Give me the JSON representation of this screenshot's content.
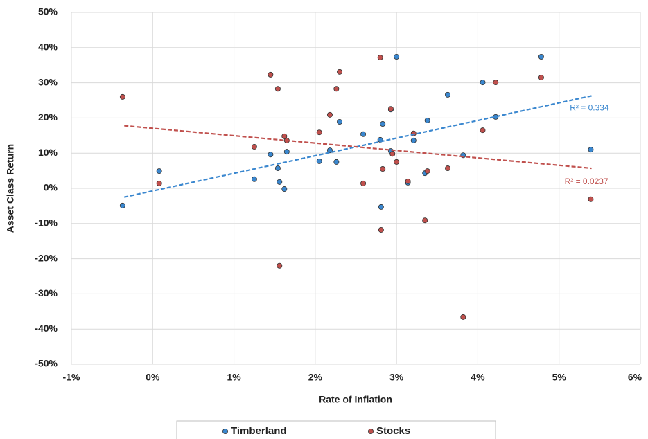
{
  "chart_data": {
    "type": "scatter",
    "x_label": "Rate of Inflation",
    "y_label": "Asset Class Return",
    "xlim": [
      -1,
      6
    ],
    "ylim": [
      -50,
      50
    ],
    "xticks": [
      {
        "value": -1,
        "label": "-1%"
      },
      {
        "value": 0,
        "label": "0%"
      },
      {
        "value": 1,
        "label": "1%"
      },
      {
        "value": 2,
        "label": "2%"
      },
      {
        "value": 3,
        "label": "3%"
      },
      {
        "value": 4,
        "label": "4%"
      },
      {
        "value": 5,
        "label": "5%"
      },
      {
        "value": 6,
        "label": "6%"
      }
    ],
    "yticks": [
      {
        "value": -50,
        "label": "-50%"
      },
      {
        "value": -40,
        "label": "-40%"
      },
      {
        "value": -30,
        "label": "-30%"
      },
      {
        "value": -20,
        "label": "-20%"
      },
      {
        "value": -10,
        "label": "-10%"
      },
      {
        "value": 0,
        "label": "0%"
      },
      {
        "value": 10,
        "label": "10%"
      },
      {
        "value": 20,
        "label": "20%"
      },
      {
        "value": 30,
        "label": "30%"
      },
      {
        "value": 40,
        "label": "40%"
      },
      {
        "value": 50,
        "label": "50%"
      }
    ],
    "grid": true,
    "legend": "bottom",
    "series": [
      {
        "name": "Timberland",
        "color": "#3a87cf",
        "x": [
          -0.37,
          0.08,
          1.25,
          1.45,
          1.54,
          1.56,
          1.62,
          1.65,
          2.05,
          2.18,
          2.26,
          2.3,
          2.59,
          2.8,
          2.83,
          2.81,
          2.93,
          2.93,
          3.0,
          3.14,
          3.21,
          3.35,
          3.38,
          3.63,
          3.82,
          4.06,
          4.22,
          4.78,
          5.39
        ],
        "values": [
          -4.9,
          4.9,
          2.6,
          9.6,
          5.7,
          1.8,
          -0.2,
          10.4,
          7.7,
          10.8,
          7.5,
          18.9,
          15.4,
          13.8,
          18.3,
          -5.3,
          10.6,
          22.4,
          37.4,
          1.6,
          13.6,
          4.3,
          19.3,
          26.6,
          9.4,
          30.1,
          20.3,
          37.4,
          11.0
        ],
        "trendline": {
          "x": [
            -0.35,
            5.4
          ],
          "values": [
            -2.5,
            26.3
          ],
          "label": "R² = 0.334"
        }
      },
      {
        "name": "Stocks",
        "color": "#c0504d",
        "x": [
          -0.37,
          0.08,
          1.25,
          1.45,
          1.54,
          1.56,
          1.62,
          1.65,
          2.05,
          2.18,
          2.26,
          2.3,
          2.59,
          2.8,
          2.81,
          2.83,
          2.93,
          2.95,
          3.0,
          3.14,
          3.21,
          3.35,
          3.38,
          3.63,
          3.82,
          4.06,
          4.22,
          4.78,
          5.39
        ],
        "values": [
          26.0,
          1.4,
          11.8,
          32.3,
          28.3,
          -22.0,
          14.8,
          13.6,
          15.9,
          20.9,
          28.3,
          33.1,
          1.4,
          37.2,
          -11.8,
          5.5,
          22.6,
          9.8,
          7.5,
          2.0,
          15.6,
          -9.1,
          4.9,
          5.7,
          -36.6,
          16.5,
          30.1,
          31.5,
          -3.1
        ],
        "trendline": {
          "x": [
            -0.35,
            5.4
          ],
          "values": [
            17.8,
            5.7
          ],
          "label": "R² = 0.0237"
        }
      }
    ]
  }
}
